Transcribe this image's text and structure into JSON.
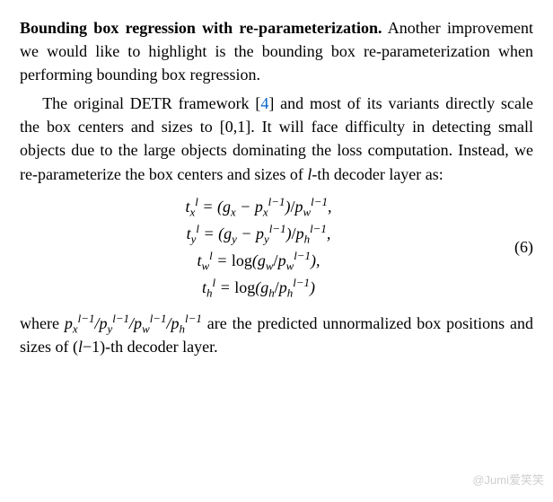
{
  "p1": {
    "heading": "Bounding box regression with re-parameterization.",
    "rest": " Another improvement we would like to highlight is the bounding box re-parameterization when performing bounding box regression."
  },
  "p2": {
    "pre": "The original DETR framework [",
    "cite": "4",
    "post": "] and most of its variants directly scale the box centers and sizes to [0,1]. It will face difficulty in detecting small objects due to the large objects dominating the loss computation. Instead, we re-parameterize the box centers and sizes of ",
    "var": "l",
    "tail": "-th decoder layer as:"
  },
  "eq": {
    "number": "(6)",
    "lines": {
      "tx": "t<sub>x</sub><sup>l</sup>&nbsp;=&nbsp;(g<sub>x</sub>&nbsp;&minus;&nbsp;p<sub>x</sub><sup>l&minus;1</sup>)<span class=\"roman\">/</span>p<sub>w</sub><sup>l&minus;1</sup>,",
      "ty": "t<sub>y</sub><sup>l</sup>&nbsp;=&nbsp;(g<sub>y</sub>&nbsp;&minus;&nbsp;p<sub>y</sub><sup>l&minus;1</sup>)<span class=\"roman\">/</span>p<sub>h</sub><sup>l&minus;1</sup>,",
      "tw": "t<sub>w</sub><sup>l</sup>&nbsp;=&nbsp;<span class=\"roman\">log</span>(g<sub>w</sub><span class=\"roman\">/</span>p<sub>w</sub><sup>l&minus;1</sup>),",
      "th": "t<sub>h</sub><sup>l</sup>&nbsp;=&nbsp;<span class=\"roman\">log</span>(g<sub>h</sub><span class=\"roman\">/</span>p<sub>h</sub><sup>l&minus;1</sup>)"
    }
  },
  "p3": {
    "pre": "where ",
    "vars": "p<sub>x</sub><sup>l&minus;1</sup>/p<sub>y</sub><sup>l&minus;1</sup>/p<sub>w</sub><sup>l&minus;1</sup>/p<sub>h</sub><sup>l&minus;1</sup>",
    "mid": " are the predicted unnormalized box positions and sizes of (",
    "var2": "l",
    "tail": "&minus;1)-th decoder layer."
  },
  "watermark": "@Jumi爱笑笑"
}
